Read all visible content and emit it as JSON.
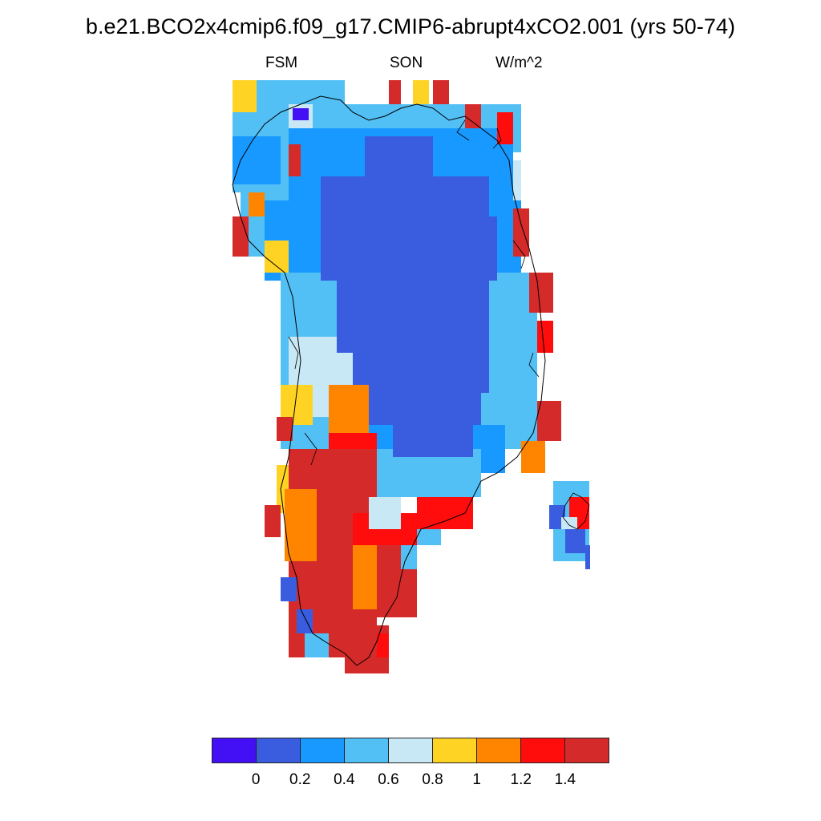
{
  "title": "b.e21.BCO2x4cmip6.f09_g17.CMIP6-abrupt4xCO2.001 (yrs 50-74)",
  "subtitle": {
    "left": "FSM",
    "center": "SON",
    "right": "W/m^2"
  },
  "colorbar": {
    "colors": [
      "#4310f5",
      "#3a5de0",
      "#1899ff",
      "#52c0f5",
      "#c8e8f6",
      "#ffd324",
      "#ff8400",
      "#ff0d0d",
      "#d52a2a"
    ],
    "labels": [
      "0",
      "0.2",
      "0.4",
      "0.6",
      "0.8",
      "1",
      "1.2",
      "1.4"
    ]
  },
  "map": {
    "region": "Greenland",
    "field_levels": [
      -0.1,
      0.1,
      0.3,
      0.5,
      0.7,
      0.9,
      1.1,
      1.3,
      1.5
    ]
  }
}
